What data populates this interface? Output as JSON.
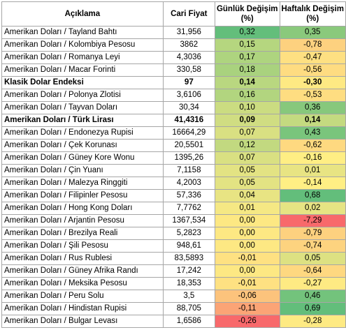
{
  "headers": {
    "desc": "Açıklama",
    "price": "Cari Fiyat",
    "daily": "Günlük Değişim",
    "daily_unit": "(%)",
    "weekly": "Haftalık Değişim",
    "weekly_unit": "(%)"
  },
  "rows": [
    {
      "desc": "Amerikan Doları / Tayland Bahtı",
      "price": "31,956",
      "daily": "0,32",
      "daily_color": "#63be7b",
      "weekly": "0,35",
      "weekly_color": "#8ac97c",
      "bold": false
    },
    {
      "desc": "Amerikan Doları / Kolombiya Pesosu",
      "price": "3862",
      "daily": "0,15",
      "daily_color": "#b5d67f",
      "weekly": "-0,78",
      "weekly_color": "#fdd17f",
      "bold": false
    },
    {
      "desc": "Amerikan Doları / Romanya Leyi",
      "price": "4,3036",
      "daily": "0,17",
      "daily_color": "#aed47f",
      "weekly": "-0,47",
      "weekly_color": "#fee082",
      "bold": false
    },
    {
      "desc": "Amerikan Doları / Macar Forinti",
      "price": "330,58",
      "daily": "0,18",
      "daily_color": "#a9d27e",
      "weekly": "-0,56",
      "weekly_color": "#fedc81",
      "bold": false
    },
    {
      "desc": "Klasik Dolar Endeksi",
      "price": "97",
      "daily": "0,14",
      "daily_color": "#b9d780",
      "weekly": "-0,30",
      "weekly_color": "#fee983",
      "bold": true
    },
    {
      "desc": "Amerikan Doları / Polonya Zlotisi",
      "price": "3,6106",
      "daily": "0,16",
      "daily_color": "#b2d57f",
      "weekly": "-0,53",
      "weekly_color": "#fedd81",
      "bold": false
    },
    {
      "desc": "Amerikan Doları /  Tayvan Doları",
      "price": "30,34",
      "daily": "0,10",
      "daily_color": "#cbdc81",
      "weekly": "0,36",
      "weekly_color": "#87c87c",
      "bold": false
    },
    {
      "desc": "Amerikan Doları / Türk Lirası",
      "price": "41,4316",
      "daily": "0,09",
      "daily_color": "#d0dd82",
      "weekly": "0,14",
      "weekly_color": "#c4da80",
      "bold": true
    },
    {
      "desc": "Amerikan Doları / Endonezya Rupisi",
      "price": "16664,29",
      "daily": "0,07",
      "daily_color": "#d9e082",
      "weekly": "0,43",
      "weekly_color": "#7ac57c",
      "bold": false
    },
    {
      "desc": "Amerikan Doları / Çek Korunası",
      "price": "20,5501",
      "daily": "0,12",
      "daily_color": "#c2d980",
      "weekly": "-0,62",
      "weekly_color": "#fed980",
      "bold": false
    },
    {
      "desc": "Amerikan Doları / Güney Kore Wonu",
      "price": "1395,26",
      "daily": "0,07",
      "daily_color": "#d9e082",
      "weekly": "-0,16",
      "weekly_color": "#ffee84",
      "bold": false
    },
    {
      "desc": "Amerikan Doları / Çin Yuanı",
      "price": "7,1158",
      "daily": "0,05",
      "daily_color": "#e3e383",
      "weekly": "0,01",
      "weekly_color": "#e8e483",
      "bold": false
    },
    {
      "desc": "Amerikan Doları / Malezya Ringgiti",
      "price": "4,2003",
      "daily": "0,05",
      "daily_color": "#e3e383",
      "weekly": "-0,14",
      "weekly_color": "#ffef84",
      "bold": false
    },
    {
      "desc": "Amerikan Doları / Filipinler Pesosu",
      "price": "57,336",
      "daily": "0,04",
      "daily_color": "#e8e483",
      "weekly": "0,68",
      "weekly_color": "#63be7b",
      "bold": false
    },
    {
      "desc": "Amerikan Doları / Hong Kong Doları",
      "price": "7,7762",
      "daily": "0,01",
      "daily_color": "#f5e884",
      "weekly": "0,02",
      "weekly_color": "#e6e483",
      "bold": false
    },
    {
      "desc": "Amerikan Doları / Arjantin Pesosu",
      "price": "1367,534",
      "daily": "0,00",
      "daily_color": "#fde883",
      "weekly": "-7,29",
      "weekly_color": "#f8696b",
      "bold": false
    },
    {
      "desc": "Amerikan Doları / Brezilya Reali",
      "price": "5,2823",
      "daily": "0,00",
      "daily_color": "#fde883",
      "weekly": "-0,79",
      "weekly_color": "#fdd17f",
      "bold": false
    },
    {
      "desc": "Amerikan Doları / Şili Pesosu",
      "price": "948,61",
      "daily": "0,00",
      "daily_color": "#fde883",
      "weekly": "-0,74",
      "weekly_color": "#fdd37f",
      "bold": false
    },
    {
      "desc": "Amerikan Doları / Rus Rublesi",
      "price": "83,5893",
      "daily": "-0,01",
      "daily_color": "#fee182",
      "weekly": "0,05",
      "weekly_color": "#dde182",
      "bold": false
    },
    {
      "desc": "Amerikan Doları / Güney Afrika Randı",
      "price": "17,242",
      "daily": "0,00",
      "daily_color": "#fde883",
      "weekly": "-0,64",
      "weekly_color": "#fed880",
      "bold": false
    },
    {
      "desc": "Amerikan Doları / Meksika Pesosu",
      "price": "18,353",
      "daily": "-0,01",
      "daily_color": "#fee182",
      "weekly": "-0,27",
      "weekly_color": "#feea83",
      "bold": false
    },
    {
      "desc": "Amerikan Doları / Peru Solu",
      "price": "3,5",
      "daily": "-0,06",
      "daily_color": "#fcc37c",
      "weekly": "0,46",
      "weekly_color": "#73c37c",
      "bold": false
    },
    {
      "desc": "Amerikan Doları / Hindistan Rupisi",
      "price": "88,705",
      "daily": "-0,11",
      "daily_color": "#fba476",
      "weekly": "0,69",
      "weekly_color": "#63be7b",
      "bold": false
    },
    {
      "desc": "Amerikan Doları / Bulgar Levası",
      "price": "1,6586",
      "daily": "-0,26",
      "daily_color": "#f8696b",
      "weekly": "-0,28",
      "weekly_color": "#feea83",
      "bold": false
    }
  ]
}
